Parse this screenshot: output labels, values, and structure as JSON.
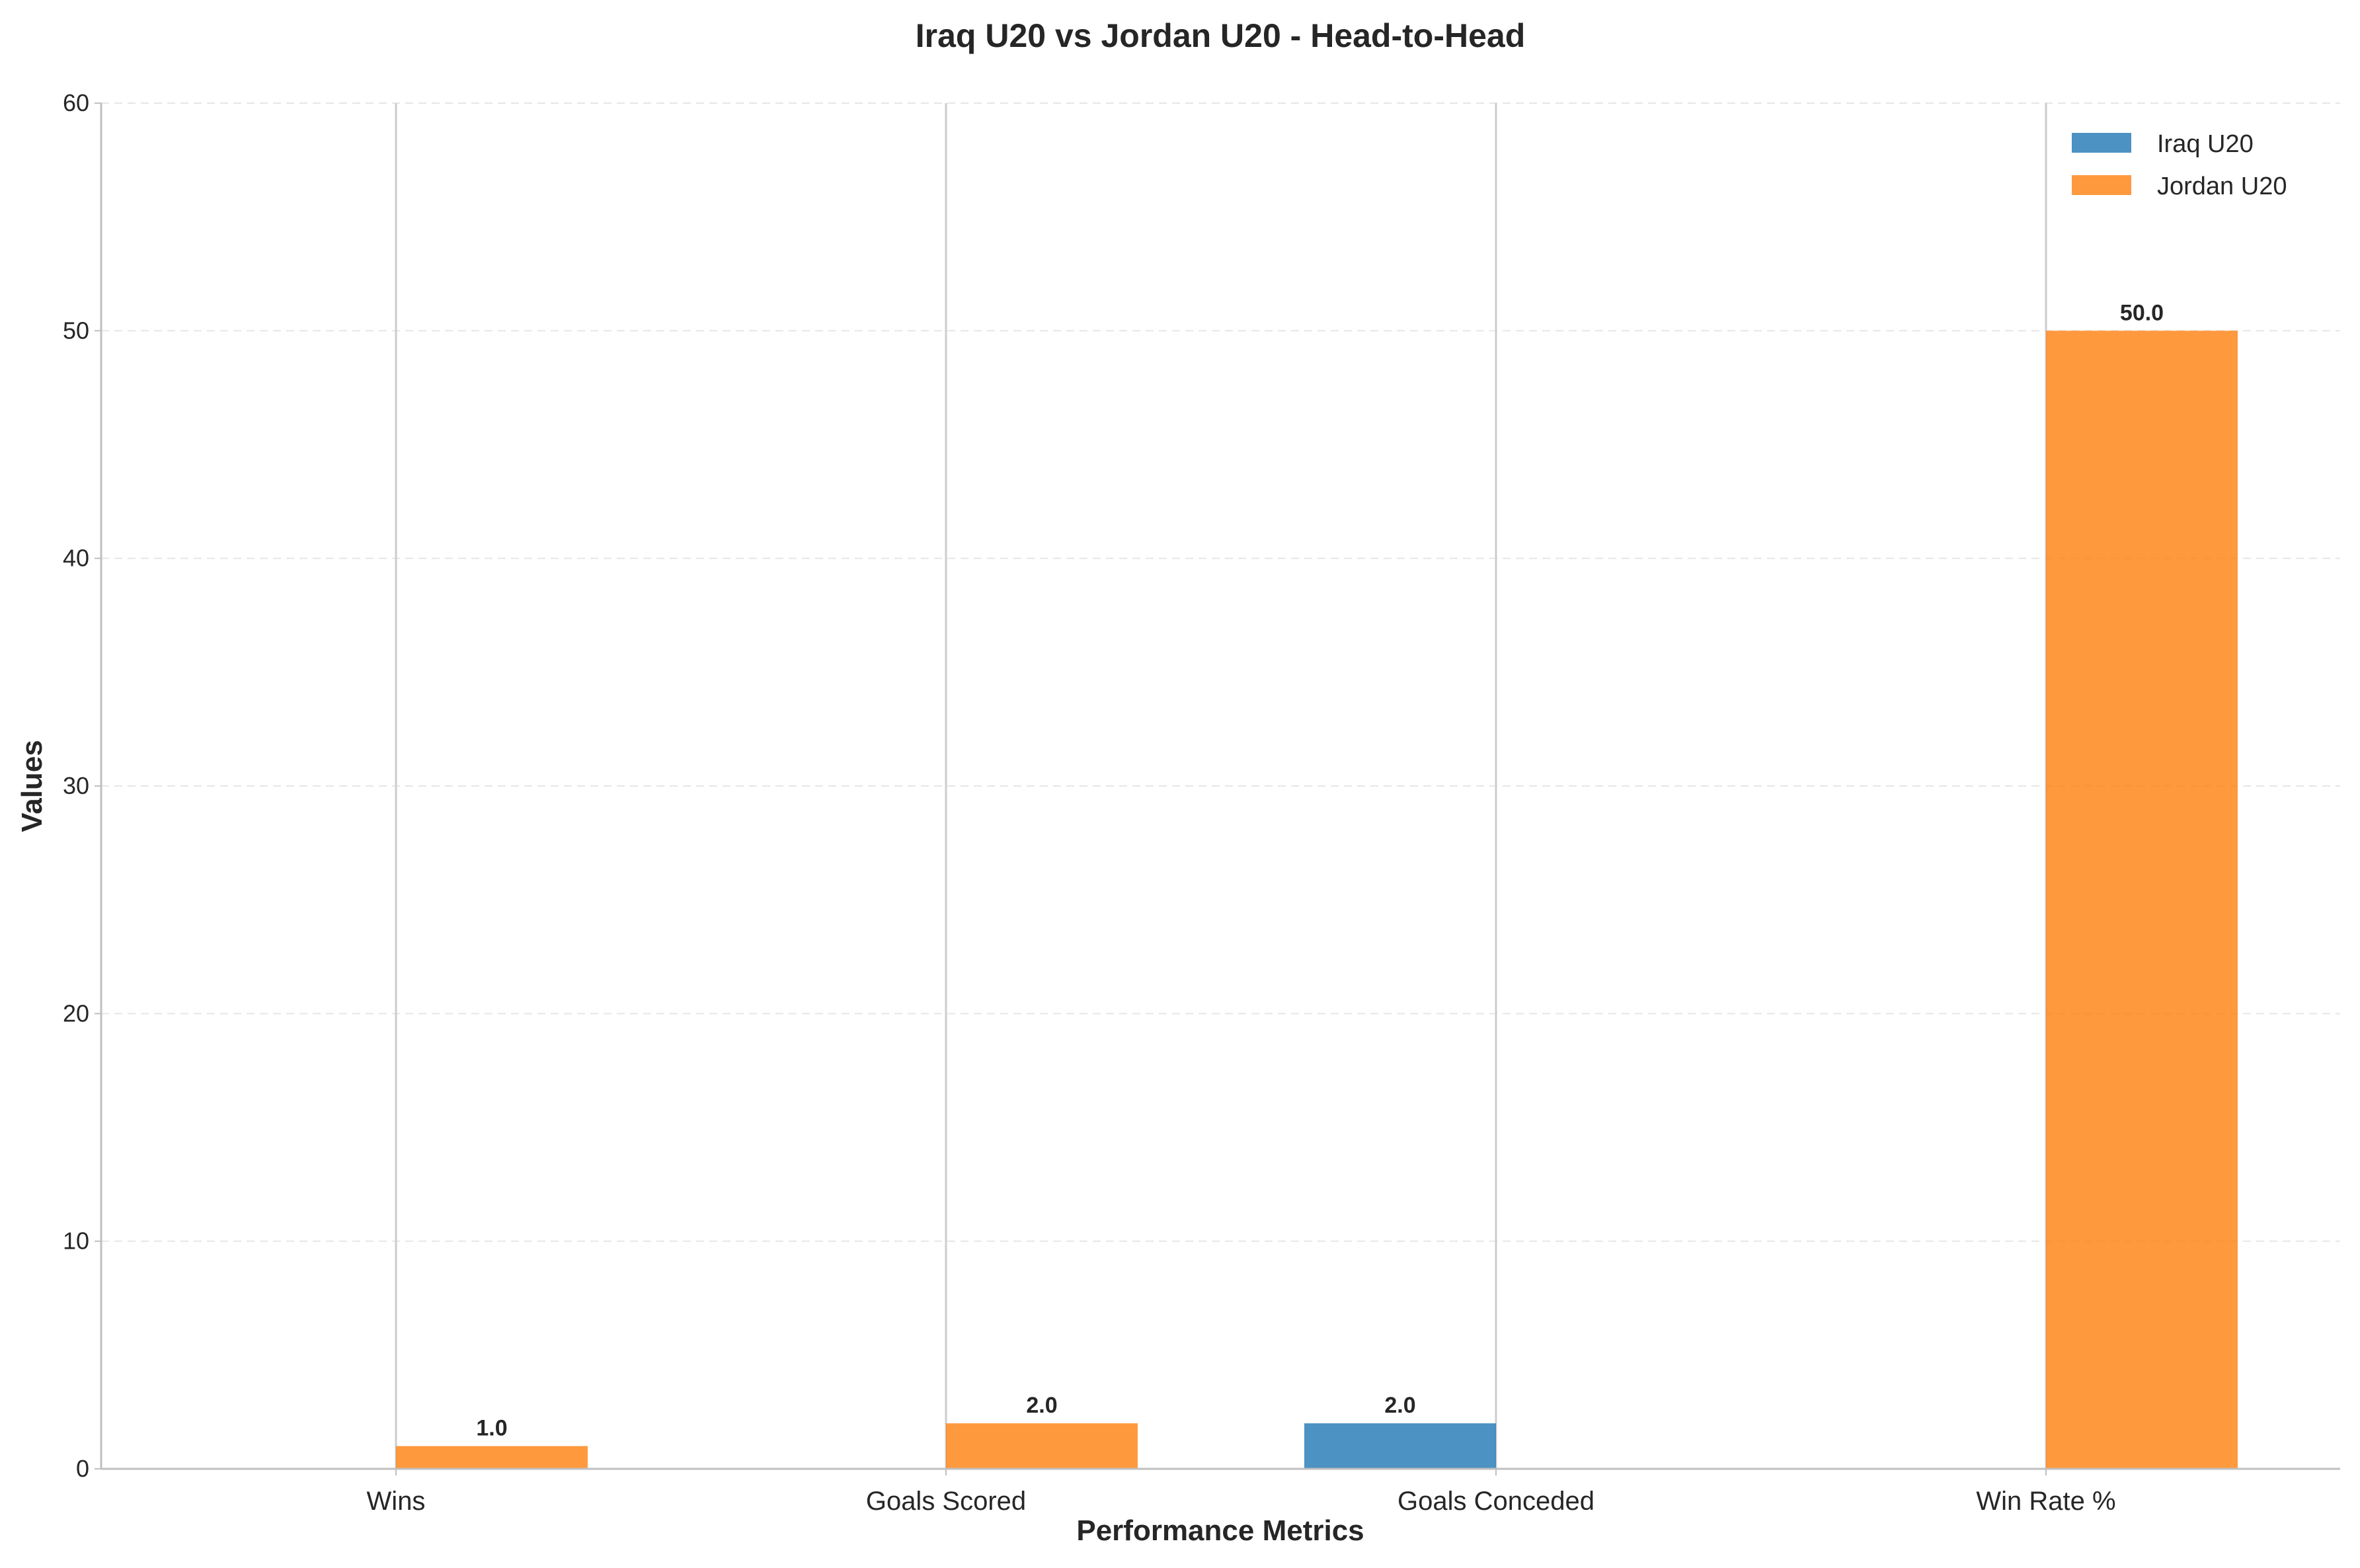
{
  "chart_data": {
    "type": "bar",
    "title": "Iraq U20 vs Jordan U20 - Head-to-Head",
    "xlabel": "Performance Metrics",
    "ylabel": "Values",
    "categories": [
      "Wins",
      "Goals Scored",
      "Goals Conceded",
      "Win Rate %"
    ],
    "series": [
      {
        "name": "Iraq U20",
        "color": "#1f77b4",
        "values": [
          0,
          0,
          2.0,
          0
        ]
      },
      {
        "name": "Jordan U20",
        "color": "#ff7f0e",
        "values": [
          1.0,
          2.0,
          0,
          50.0
        ]
      }
    ],
    "data_labels": [
      {
        "series": 1,
        "category": 0,
        "text": "1.0"
      },
      {
        "series": 1,
        "category": 1,
        "text": "2.0"
      },
      {
        "series": 0,
        "category": 2,
        "text": "2.0"
      },
      {
        "series": 1,
        "category": 3,
        "text": "50.0"
      }
    ],
    "ylim": [
      0,
      60
    ],
    "yticks": [
      0,
      10,
      20,
      30,
      40,
      50,
      60
    ],
    "ytick_labels": [
      "0",
      "10",
      "20",
      "30",
      "40",
      "50",
      "60"
    ],
    "grid": "y-dashed",
    "legend_position": "top-right"
  }
}
